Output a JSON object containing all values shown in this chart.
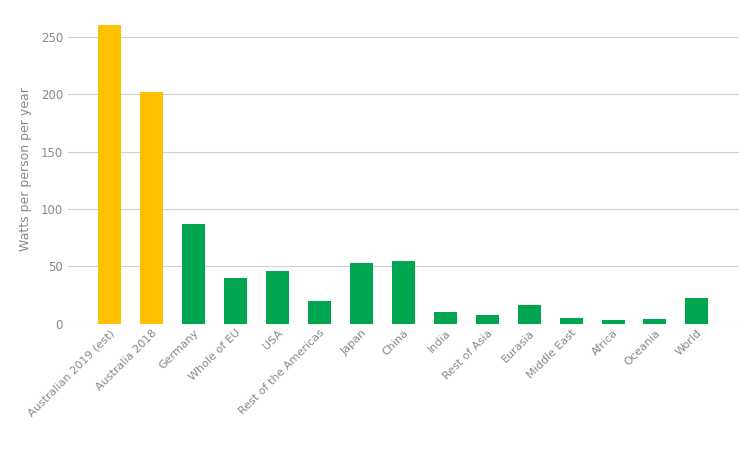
{
  "categories": [
    "Australian 2019 (est)",
    "Australia 2018",
    "Germany",
    "Whole of EU",
    "USA",
    "Rest of the Americas",
    "Japan",
    "China",
    "India",
    "Rest of Asia",
    "Eurasia",
    "Middle East",
    "Africa",
    "Oceania",
    "World"
  ],
  "values": [
    261,
    202,
    87,
    40,
    46,
    20,
    53,
    55,
    10,
    8,
    16,
    5,
    3,
    4,
    22
  ],
  "bar_colors": [
    "#FFC000",
    "#FFC000",
    "#00A550",
    "#00A550",
    "#00A550",
    "#00A550",
    "#00A550",
    "#00A550",
    "#00A550",
    "#00A550",
    "#00A550",
    "#00A550",
    "#00A550",
    "#00A550",
    "#00A550"
  ],
  "ylabel": "Watts per person per year",
  "ylim": [
    0,
    270
  ],
  "yticks": [
    0,
    50,
    100,
    150,
    200,
    250
  ],
  "background_color": "#ffffff",
  "grid_color": "#d0d0d0",
  "bar_width": 0.55,
  "tick_label_fontsize": 8,
  "ylabel_fontsize": 9
}
